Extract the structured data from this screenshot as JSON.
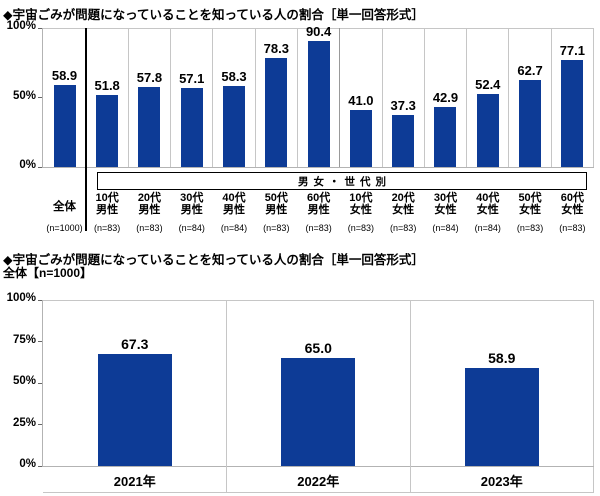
{
  "colors": {
    "bar": "#0d3b96",
    "grid": "#c6c6c6",
    "axis": "#b3b3b3",
    "tick": "#666666",
    "group_divider": "#999999",
    "overall_divider": "#000000",
    "text": "#000000",
    "background": "#ffffff"
  },
  "chart_data": [
    {
      "type": "bar",
      "title": "◆宇宙ごみが問題になっていることを知っている人の割合［単一回答形式］",
      "ylim": [
        0,
        100
      ],
      "yticks": [
        0,
        50,
        100
      ],
      "ytick_labels": [
        "0%",
        "50%",
        "100%"
      ],
      "grid": false,
      "group_band_label": "男女・世代別",
      "groups": [
        {
          "label": "全体",
          "from": 0,
          "to": 0
        },
        {
          "label": "男性",
          "from": 1,
          "to": 6
        },
        {
          "label": "女性",
          "from": 7,
          "to": 12
        }
      ],
      "categories": [
        {
          "lines": [
            "全体"
          ],
          "n": "(n=1000)",
          "value": 58.9
        },
        {
          "lines": [
            "10代",
            "男性"
          ],
          "n": "(n=83)",
          "value": 51.8
        },
        {
          "lines": [
            "20代",
            "男性"
          ],
          "n": "(n=83)",
          "value": 57.8
        },
        {
          "lines": [
            "30代",
            "男性"
          ],
          "n": "(n=84)",
          "value": 57.1
        },
        {
          "lines": [
            "40代",
            "男性"
          ],
          "n": "(n=84)",
          "value": 58.3
        },
        {
          "lines": [
            "50代",
            "男性"
          ],
          "n": "(n=83)",
          "value": 78.3
        },
        {
          "lines": [
            "60代",
            "男性"
          ],
          "n": "(n=83)",
          "value": 90.4
        },
        {
          "lines": [
            "10代",
            "女性"
          ],
          "n": "(n=83)",
          "value": 41.0
        },
        {
          "lines": [
            "20代",
            "女性"
          ],
          "n": "(n=83)",
          "value": 37.3
        },
        {
          "lines": [
            "30代",
            "女性"
          ],
          "n": "(n=84)",
          "value": 42.9
        },
        {
          "lines": [
            "40代",
            "女性"
          ],
          "n": "(n=84)",
          "value": 52.4
        },
        {
          "lines": [
            "50代",
            "女性"
          ],
          "n": "(n=83)",
          "value": 62.7
        },
        {
          "lines": [
            "60代",
            "女性"
          ],
          "n": "(n=83)",
          "value": 77.1
        }
      ]
    },
    {
      "type": "bar",
      "title": "◆宇宙ごみが問題になっていることを知っている人の割合［単一回答形式］",
      "subtitle": "全体【n=1000】",
      "ylim": [
        0,
        100
      ],
      "yticks": [
        0,
        25,
        50,
        75,
        100
      ],
      "ytick_labels": [
        "0%",
        "25%",
        "50%",
        "75%",
        "100%"
      ],
      "grid": false,
      "categories": [
        "2021年",
        "2022年",
        "2023年"
      ],
      "values": [
        67.3,
        65.0,
        58.9
      ]
    }
  ]
}
